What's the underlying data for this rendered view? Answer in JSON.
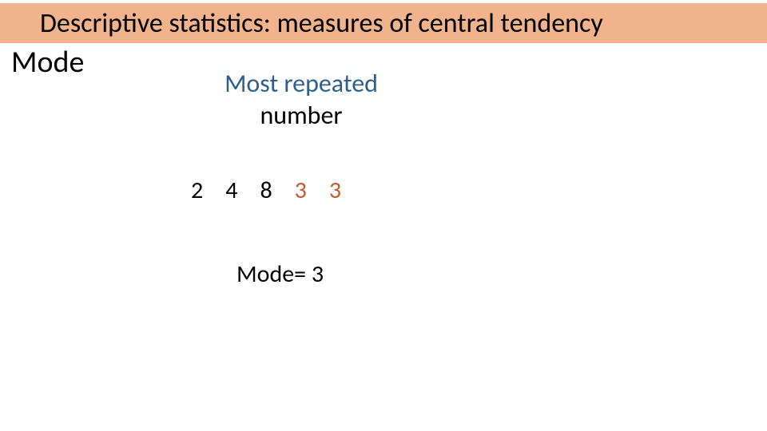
{
  "slide": {
    "title": "Descriptive statistics: measures of central tendency",
    "subtitle": "Mode",
    "definition_line1": "Most repeated",
    "definition_line2": "number",
    "numbers": [
      {
        "value": "2",
        "accent": false
      },
      {
        "value": "4",
        "accent": false
      },
      {
        "value": "8",
        "accent": false
      },
      {
        "value": "3",
        "accent": true
      },
      {
        "value": "3",
        "accent": true
      }
    ],
    "result": "Mode= 3",
    "colors": {
      "banner_bg": "#f0b38b",
      "title_text": "#000000",
      "definition_accent": "#2e5e8a",
      "body_text": "#000000",
      "number_accent": "#c55a2b",
      "background": "#ffffff"
    },
    "typography": {
      "title_fontsize": 34,
      "subtitle_fontsize": 38,
      "definition_fontsize": 32,
      "number_fontsize": 30,
      "result_fontsize": 30,
      "font_family": "Calibri"
    }
  }
}
